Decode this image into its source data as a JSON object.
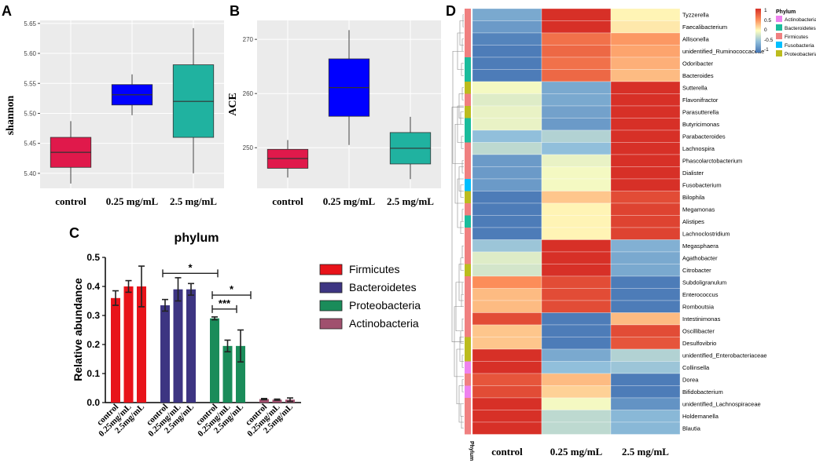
{
  "colors": {
    "panel_bg": "#ebebeb",
    "grid": "#ffffff",
    "control": "#e0194b",
    "low_dose": "#0000ff",
    "high_dose": "#20b2a0",
    "firmicutes": "#e8131a",
    "bacteroidetes": "#3d3582",
    "proteobacteria": "#1a8c5a",
    "actinobacteria": "#a0506e",
    "phylum_actino": "#ee82ee",
    "phylum_bacteroidetes": "#1abc9c",
    "phylum_firmicutes": "#f08080",
    "phylum_fuso": "#00bfff",
    "phylum_proteo": "#bcbc1e"
  },
  "chart_data": [
    {
      "panel": "A",
      "type": "box",
      "ylabel": "shannon",
      "ylim": [
        5.375,
        5.655
      ],
      "yticks": [
        "5.40",
        "5.45",
        "5.50",
        "5.55",
        "5.60",
        "5.65"
      ],
      "categories": [
        "control",
        "0.25 mg/mL",
        "2.5 mg/mL"
      ],
      "boxes": [
        {
          "min": 5.383,
          "q1": 5.41,
          "median": 5.435,
          "q3": 5.46,
          "max": 5.487
        },
        {
          "min": 5.497,
          "q1": 5.514,
          "median": 5.531,
          "q3": 5.548,
          "max": 5.565
        },
        {
          "min": 5.4,
          "q1": 5.46,
          "median": 5.52,
          "q3": 5.581,
          "max": 5.642
        }
      ]
    },
    {
      "panel": "B",
      "type": "box",
      "ylabel": "ACE",
      "ylim": [
        242.5,
        273.5
      ],
      "yticks": [
        "250",
        "260",
        "270"
      ],
      "categories": [
        "control",
        "0.25 mg/mL",
        "2.5 mg/mL"
      ],
      "boxes": [
        {
          "min": 244.5,
          "q1": 246.2,
          "median": 248.0,
          "q3": 249.7,
          "max": 251.4
        },
        {
          "min": 250.5,
          "q1": 255.8,
          "median": 261.1,
          "q3": 266.4,
          "max": 271.7
        },
        {
          "min": 244.2,
          "q1": 247.0,
          "median": 249.9,
          "q3": 252.8,
          "max": 255.7
        }
      ]
    },
    {
      "panel": "C",
      "type": "bar",
      "title": "phylum",
      "ylabel": "Relative abundance",
      "ylim": [
        0,
        0.5
      ],
      "yticks": [
        "0.0",
        "0.1",
        "0.2",
        "0.3",
        "0.4",
        "0.5"
      ],
      "groups": [
        "Firmicutes",
        "Bacteroidetes",
        "Proteobacteria",
        "Actinobacteria"
      ],
      "categories": [
        "control",
        "0.25mg/mL",
        "2.5mg/mL"
      ],
      "values": [
        [
          0.36,
          0.4,
          0.4
        ],
        [
          0.335,
          0.39,
          0.39
        ],
        [
          0.29,
          0.195,
          0.195
        ],
        [
          0.012,
          0.01,
          0.01
        ]
      ],
      "errors": [
        [
          0.025,
          0.02,
          0.07
        ],
        [
          0.02,
          0.04,
          0.02
        ],
        [
          0.005,
          0.02,
          0.055
        ],
        [
          0.002,
          0.002,
          0.006
        ]
      ],
      "annotations": [
        "*",
        "*",
        "***"
      ],
      "legend": [
        "Firmicutes",
        "Bacteroidetes",
        "Proteobacteria",
        "Actinobacteria"
      ],
      "legend_position": "right"
    },
    {
      "panel": "D",
      "type": "heatmap",
      "columns": [
        "control",
        "0.25 mg/mL",
        "2.5 mg/mL"
      ],
      "scale_ticks": [
        "1",
        "0.5",
        "0",
        "-0.5",
        "-1"
      ],
      "annotation_label": "Phylum",
      "legend_title": "Phylum",
      "legend_items": [
        "Actinobacteria",
        "Bacteroidetes",
        "Firmicutes",
        "Fusobacteria",
        "Proteobacteria"
      ],
      "rows": [
        {
          "name": "Tyzzerella",
          "phylum": 2,
          "values": [
            -0.65,
            1.1,
            0.05
          ]
        },
        {
          "name": "Faecalibacterium",
          "phylum": 2,
          "values": [
            -0.75,
            1.05,
            0.1
          ]
        },
        {
          "name": "Allisonella",
          "phylum": 2,
          "values": [
            -0.9,
            0.65,
            0.45
          ]
        },
        {
          "name": "unidentified_Ruminococcaceae",
          "phylum": 2,
          "values": [
            -0.95,
            0.7,
            0.4
          ]
        },
        {
          "name": "Odoribacter",
          "phylum": 1,
          "values": [
            -0.95,
            0.65,
            0.35
          ]
        },
        {
          "name": "Bacteroides",
          "phylum": 1,
          "values": [
            -0.95,
            0.7,
            0.3
          ]
        },
        {
          "name": "Sutterella",
          "phylum": 4,
          "values": [
            -0.05,
            -0.65,
            1.1
          ]
        },
        {
          "name": "Flavonifractor",
          "phylum": 2,
          "values": [
            -0.15,
            -0.65,
            1.1
          ]
        },
        {
          "name": "Parasutterella",
          "phylum": 4,
          "values": [
            -0.1,
            -0.7,
            1.1
          ]
        },
        {
          "name": "Butyricimonas",
          "phylum": 1,
          "values": [
            -0.1,
            -0.75,
            1.1
          ]
        },
        {
          "name": "Parabacteroides",
          "phylum": 1,
          "values": [
            -0.5,
            -0.35,
            1.1
          ]
        },
        {
          "name": "Lachnospira",
          "phylum": 2,
          "values": [
            -0.3,
            -0.5,
            1.1
          ]
        },
        {
          "name": "Phascolarctobacterium",
          "phylum": 2,
          "values": [
            -0.75,
            -0.1,
            1.0
          ]
        },
        {
          "name": "Dialister",
          "phylum": 2,
          "values": [
            -0.75,
            -0.05,
            1.0
          ]
        },
        {
          "name": "Fusobacterium",
          "phylum": 3,
          "values": [
            -0.75,
            -0.05,
            1.0
          ]
        },
        {
          "name": "Bilophila",
          "phylum": 4,
          "values": [
            -0.95,
            0.25,
            0.85
          ]
        },
        {
          "name": "Megamonas",
          "phylum": 2,
          "values": [
            -0.95,
            0.05,
            0.9
          ]
        },
        {
          "name": "Alistipes",
          "phylum": 1,
          "values": [
            -0.95,
            0.05,
            0.9
          ]
        },
        {
          "name": "Lachnoclostridium",
          "phylum": 2,
          "values": [
            -0.95,
            0.05,
            0.9
          ]
        },
        {
          "name": "Megasphaera",
          "phylum": 2,
          "values": [
            -0.45,
            1.1,
            -0.6
          ]
        },
        {
          "name": "Agathobacter",
          "phylum": 2,
          "values": [
            -0.15,
            1.1,
            -0.65
          ]
        },
        {
          "name": "Citrobacter",
          "phylum": 4,
          "values": [
            -0.2,
            1.1,
            -0.65
          ]
        },
        {
          "name": "Subdoligranulum",
          "phylum": 2,
          "values": [
            0.5,
            0.85,
            -0.95
          ]
        },
        {
          "name": "Enterococcus",
          "phylum": 2,
          "values": [
            0.3,
            0.85,
            -0.95
          ]
        },
        {
          "name": "Romboutsia",
          "phylum": 2,
          "values": [
            0.3,
            0.85,
            -0.95
          ]
        },
        {
          "name": "Intestinimonas",
          "phylum": 2,
          "values": [
            0.85,
            -0.95,
            0.3
          ]
        },
        {
          "name": "Oscillibacter",
          "phylum": 2,
          "values": [
            0.25,
            -0.95,
            0.85
          ]
        },
        {
          "name": "Desulfovibrio",
          "phylum": 4,
          "values": [
            0.25,
            -0.95,
            0.8
          ]
        },
        {
          "name": "unidentified_Enterobacteriaceae",
          "phylum": 4,
          "values": [
            1.1,
            -0.65,
            -0.35
          ]
        },
        {
          "name": "Collinsella",
          "phylum": 0,
          "values": [
            1.1,
            -0.5,
            -0.45
          ]
        },
        {
          "name": "Dorea",
          "phylum": 2,
          "values": [
            0.8,
            0.3,
            -0.95
          ]
        },
        {
          "name": "Bifidobacterium",
          "phylum": 0,
          "values": [
            0.85,
            0.2,
            -0.95
          ]
        },
        {
          "name": "unidentified_Lachnospiraceae",
          "phylum": 2,
          "values": [
            1.0,
            -0.05,
            -0.8
          ]
        },
        {
          "name": "Holdemanella",
          "phylum": 2,
          "values": [
            1.1,
            -0.3,
            -0.55
          ]
        },
        {
          "name": "Blautia",
          "phylum": 2,
          "values": [
            1.1,
            -0.3,
            -0.55
          ]
        }
      ]
    }
  ]
}
